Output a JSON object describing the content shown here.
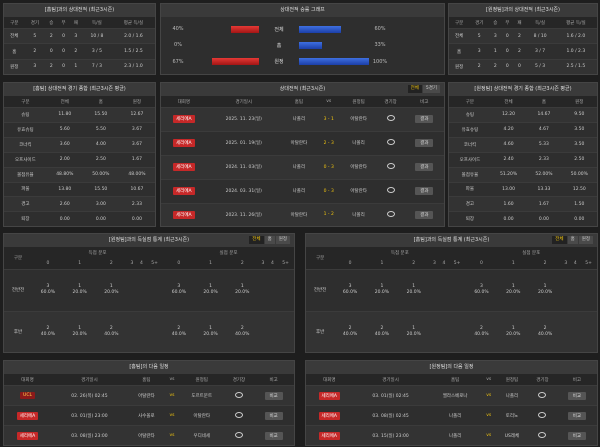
{
  "panels": {
    "home_record": {
      "kind": "record",
      "title": "[홈팀]과의 상대전적 (최근3시즌)",
      "columns": [
        "구분",
        "경기",
        "승",
        "무",
        "패",
        "득/실",
        "평균 득/실"
      ],
      "rows": [
        [
          "전체",
          "5",
          "2",
          "0",
          "3",
          "10 / 8",
          "2.0 / 1.6"
        ],
        [
          "홈",
          "2",
          "0",
          "0",
          "2",
          "3 / 5",
          "1.5 / 2.5"
        ],
        [
          "원정",
          "3",
          "2",
          "0",
          "1",
          "7 / 3",
          "2.3 / 1.0"
        ]
      ]
    },
    "graph": {
      "kind": "graph",
      "title": "상대전적 승률 그래프",
      "rows": [
        {
          "label": "전체",
          "left": 40,
          "left_label": "40%",
          "right": 60,
          "right_label": "60%"
        },
        {
          "label": "홈",
          "left": 0,
          "left_label": "0%",
          "right": 33,
          "right_label": "33%"
        },
        {
          "label": "원정",
          "left": 67,
          "left_label": "67%",
          "right": 100,
          "right_label": "100%"
        }
      ]
    },
    "away_record": {
      "kind": "record",
      "title": "[원정팀]과의 상대전적 (최근3시즌)",
      "columns": [
        "구분",
        "경기",
        "승",
        "무",
        "패",
        "득/실",
        "평균 득/실"
      ],
      "rows": [
        [
          "전체",
          "5",
          "3",
          "0",
          "2",
          "8 / 10",
          "1.6 / 2.0"
        ],
        [
          "홈",
          "3",
          "1",
          "0",
          "2",
          "3 / 7",
          "1.0 / 2.3"
        ],
        [
          "원정",
          "2",
          "2",
          "0",
          "0",
          "5 / 3",
          "2.5 / 1.5"
        ]
      ]
    },
    "home_summary": {
      "kind": "record",
      "title": "[홈팀] 상대전적 경기 종합 (최근3시즌 평균)",
      "columns": [
        "구분",
        "전체",
        "홈",
        "원정"
      ],
      "rows": [
        [
          "슈팅",
          "11.80",
          "15.50",
          "12.67"
        ],
        [
          "유효슈팅",
          "5.60",
          "5.50",
          "3.67"
        ],
        [
          "코너킥",
          "3.60",
          "4.00",
          "3.67"
        ],
        [
          "오프사이드",
          "2.00",
          "2.50",
          "1.67"
        ],
        [
          "볼점유율",
          "48.80%",
          "50.00%",
          "48.00%"
        ],
        [
          "파울",
          "13.80",
          "15.50",
          "10.67"
        ],
        [
          "경고",
          "2.60",
          "3.00",
          "2.33"
        ],
        [
          "퇴장",
          "0.00",
          "0.00",
          "0.00"
        ]
      ]
    },
    "h2h": {
      "kind": "matches",
      "title": "상대전적 (최근3시즌)",
      "tabs": [
        "전체",
        "5경기"
      ],
      "button": "결과",
      "columns": [
        "대회명",
        "경기일시",
        "홈팀",
        "vs",
        "원정팀",
        "경기장",
        "비고"
      ],
      "rows": [
        [
          "세리에A",
          "2025. 11. 23(일)",
          "나폴리",
          "3 - 1",
          "아탈란타"
        ],
        [
          "세리에A",
          "2025. 01. 19(일)",
          "아탈란타",
          "2 - 3",
          "나폴리"
        ],
        [
          "세리에A",
          "2024. 11. 03(일)",
          "나폴리",
          "0 - 3",
          "아탈란타"
        ],
        [
          "세리에A",
          "2024. 03. 31(일)",
          "나폴리",
          "0 - 3",
          "아탈란타"
        ],
        [
          "세리에A",
          "2023. 11. 26(일)",
          "아탈란타",
          "1 - 2",
          "나폴리"
        ]
      ]
    },
    "away_summary": {
      "kind": "record",
      "title": "[원정팀] 상대전적 경기 종합 (최근3시즌 평균)",
      "columns": [
        "구분",
        "전체",
        "홈",
        "원정"
      ],
      "rows": [
        [
          "슈팅",
          "12.20",
          "14.67",
          "9.50"
        ],
        [
          "유효슈팅",
          "4.20",
          "4.67",
          "3.50"
        ],
        [
          "코너킥",
          "4.60",
          "5.33",
          "3.50"
        ],
        [
          "오프사이드",
          "2.40",
          "2.33",
          "2.50"
        ],
        [
          "볼점유율",
          "51.20%",
          "52.00%",
          "50.00%"
        ],
        [
          "파울",
          "13.00",
          "13.33",
          "12.50"
        ],
        [
          "경고",
          "1.60",
          "1.67",
          "1.50"
        ],
        [
          "퇴장",
          "0.00",
          "0.00",
          "0.00"
        ]
      ]
    },
    "home_goals": {
      "kind": "goals",
      "title": "[원정팀]과의 득실점 통계 (최근3시즌)",
      "tabs": [
        "전체",
        "홈",
        "원정"
      ],
      "groups": [
        "구분",
        "득점 분포",
        "실점 분포"
      ],
      "columns": [
        "0",
        "1",
        "2",
        "3",
        "4",
        "5+"
      ],
      "rows": [
        {
          "label": "전반전",
          "cells": [
            [
              "3",
              "60.0%"
            ],
            [
              "1",
              "20.0%"
            ],
            [
              "1",
              "20.0%"
            ],
            null,
            null,
            null,
            [
              "3",
              "60.0%"
            ],
            [
              "1",
              "20.0%"
            ],
            [
              "1",
              "20.0%"
            ],
            null,
            null,
            null
          ]
        },
        {
          "label": "후반",
          "cells": [
            [
              "2",
              "40.0%"
            ],
            [
              "1",
              "20.0%"
            ],
            [
              "2",
              "40.0%"
            ],
            null,
            null,
            null,
            [
              "2",
              "40.0%"
            ],
            [
              "1",
              "20.0%"
            ],
            [
              "2",
              "40.0%"
            ],
            null,
            null,
            null
          ]
        }
      ]
    },
    "away_goals": {
      "kind": "goals",
      "title": "[홈팀]과의 득실점 통계 (최근3시즌)",
      "tabs": [
        "전체",
        "홈",
        "원정"
      ],
      "groups": [
        "구분",
        "득점 분포",
        "실점 분포"
      ],
      "columns": [
        "0",
        "1",
        "2",
        "3",
        "4",
        "5+"
      ],
      "rows": [
        {
          "label": "전반전",
          "cells": [
            [
              "3",
              "60.0%"
            ],
            [
              "1",
              "20.0%"
            ],
            [
              "1",
              "20.0%"
            ],
            null,
            null,
            null,
            [
              "3",
              "60.0%"
            ],
            [
              "1",
              "20.0%"
            ],
            [
              "1",
              "20.0%"
            ],
            null,
            null,
            null
          ]
        },
        {
          "label": "후반",
          "cells": [
            [
              "2",
              "40.0%"
            ],
            [
              "2",
              "40.0%"
            ],
            [
              "1",
              "20.0%"
            ],
            null,
            null,
            null,
            [
              "2",
              "40.0%"
            ],
            [
              "1",
              "20.0%"
            ],
            [
              "2",
              "40.0%"
            ],
            null,
            null,
            null
          ]
        }
      ]
    },
    "home_next": {
      "kind": "matches",
      "title": "[홈팀]의 다음 일정",
      "button": "비교",
      "columns": [
        "대회명",
        "경기일시",
        "홈팀",
        "vs",
        "원정팀",
        "경기장",
        "비고"
      ],
      "rows": [
        [
          "UCL",
          "02. 26(목) 02:45",
          "아탈란타",
          "vs",
          "도르트문트"
        ],
        [
          "세리에A",
          "03. 01(일) 23:00",
          "사수올로",
          "vs",
          "아탈란타"
        ],
        [
          "세리에A",
          "03. 08(일) 23:00",
          "아탈란타",
          "vs",
          "우디네세"
        ]
      ]
    },
    "away_next": {
      "kind": "matches",
      "title": "[원정팀]의 다음 일정",
      "button": "비교",
      "columns": [
        "대회명",
        "경기일시",
        "홈팀",
        "vs",
        "원정팀",
        "경기장",
        "비고"
      ],
      "rows": [
        [
          "세리에A",
          "03. 01(일) 02:45",
          "엘라스베로나",
          "vs",
          "나폴리"
        ],
        [
          "세리에A",
          "03. 08(일) 02:45",
          "나폴리",
          "vs",
          "토리노"
        ],
        [
          "세리에A",
          "03. 15(일) 23:00",
          "나폴리",
          "vs",
          "US레체"
        ]
      ]
    }
  }
}
